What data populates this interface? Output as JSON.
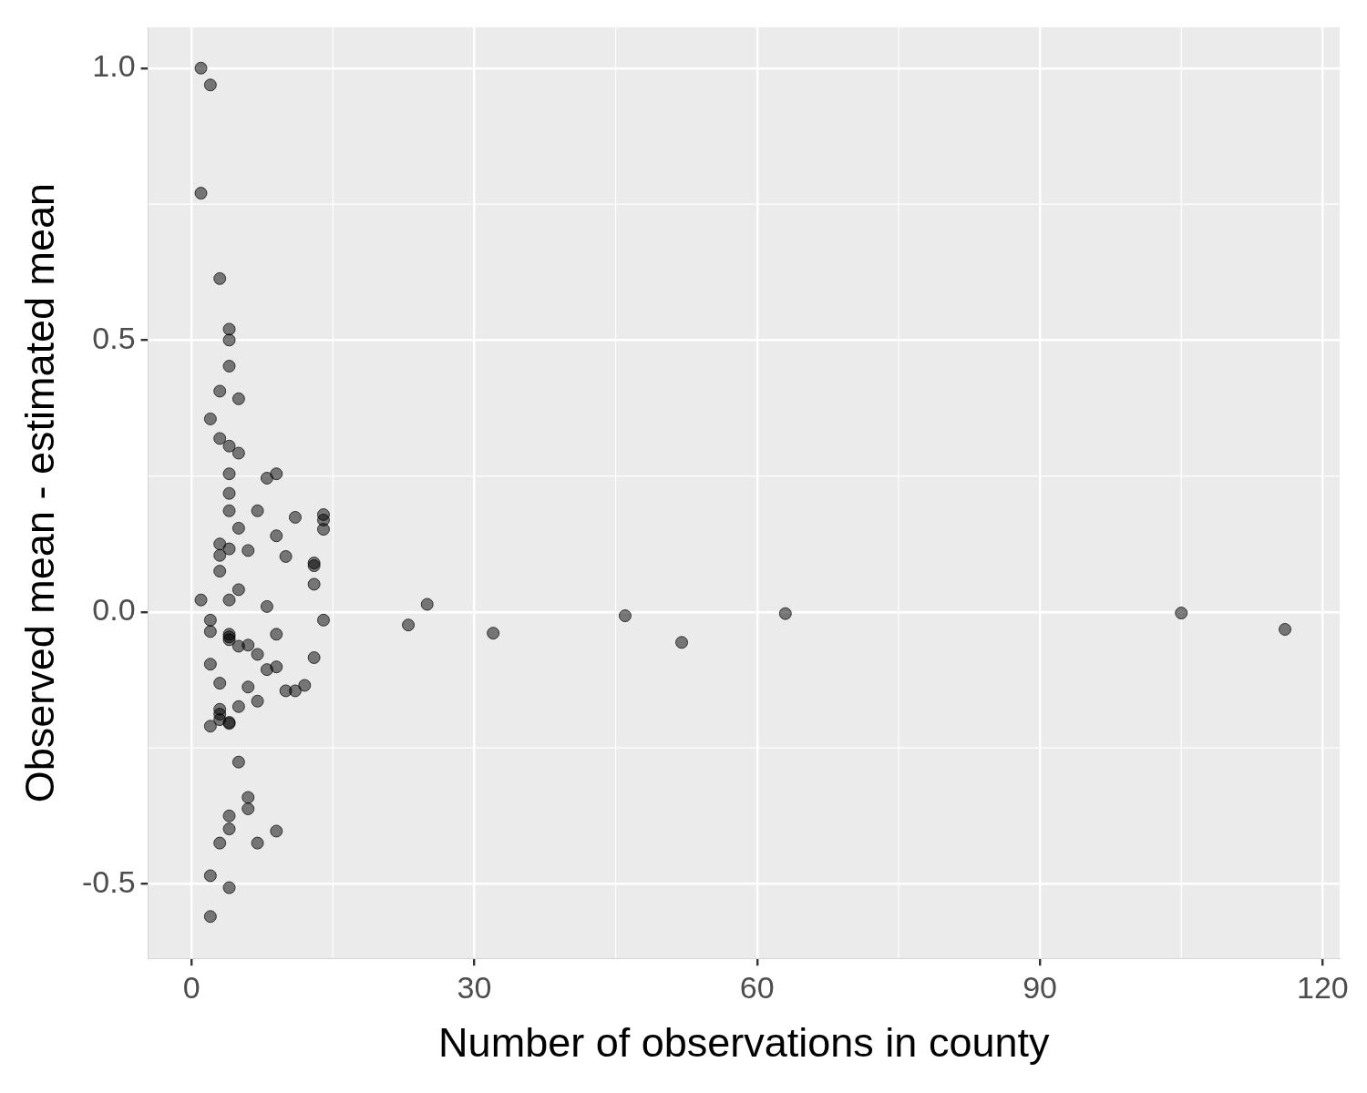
{
  "chart_data": {
    "type": "scatter",
    "x_label": "Number of observations in county",
    "y_label": "Observed mean - estimated mean",
    "x": [
      1,
      2,
      1,
      3,
      4,
      4,
      4,
      3,
      5,
      2,
      3,
      4,
      5,
      8,
      9,
      4,
      4,
      4,
      7,
      11,
      14,
      14,
      14,
      5,
      9,
      3,
      4,
      6,
      3,
      10,
      13,
      13,
      3,
      13,
      5,
      1,
      4,
      8,
      2,
      14,
      2,
      4,
      4,
      9,
      4,
      5,
      6,
      7,
      13,
      2,
      9,
      8,
      3,
      12,
      6,
      10,
      11,
      7,
      5,
      3,
      3,
      3,
      4,
      4,
      2,
      5,
      6,
      6,
      4,
      4,
      9,
      3,
      7,
      2,
      4,
      2,
      23,
      25,
      32,
      46,
      52,
      63,
      105,
      116
    ],
    "values": [
      1.0,
      0.969,
      0.77,
      0.613,
      0.52,
      0.5,
      0.452,
      0.406,
      0.392,
      0.355,
      0.319,
      0.305,
      0.292,
      0.246,
      0.254,
      0.254,
      0.218,
      0.186,
      0.186,
      0.174,
      0.179,
      0.169,
      0.152,
      0.154,
      0.14,
      0.125,
      0.116,
      0.113,
      0.104,
      0.102,
      0.09,
      0.085,
      0.075,
      0.051,
      0.041,
      0.022,
      0.022,
      0.01,
      -0.015,
      -0.015,
      -0.036,
      -0.041,
      -0.046,
      -0.041,
      -0.051,
      -0.063,
      -0.061,
      -0.078,
      -0.084,
      -0.096,
      -0.101,
      -0.106,
      -0.131,
      -0.135,
      -0.138,
      -0.145,
      -0.145,
      -0.164,
      -0.174,
      -0.179,
      -0.188,
      -0.198,
      -0.203,
      -0.205,
      -0.21,
      -0.276,
      -0.341,
      -0.362,
      -0.375,
      -0.399,
      -0.403,
      -0.425,
      -0.425,
      -0.485,
      -0.507,
      -0.56,
      -0.024,
      0.014,
      -0.039,
      -0.007,
      -0.056,
      -0.003,
      -0.002,
      -0.032
    ],
    "color": "#000000",
    "marker": "circle",
    "xlim": [
      -4.6,
      121.8
    ],
    "xticks": [
      0,
      30,
      60,
      90,
      120
    ],
    "ylim": [
      -0.637,
      1.075
    ],
    "yticks": [
      -0.5,
      {
        "value": 0,
        "label": "0.0"
      },
      0.5,
      {
        "value": 1,
        "label": "1.0"
      }
    ],
    "grid": true
  }
}
